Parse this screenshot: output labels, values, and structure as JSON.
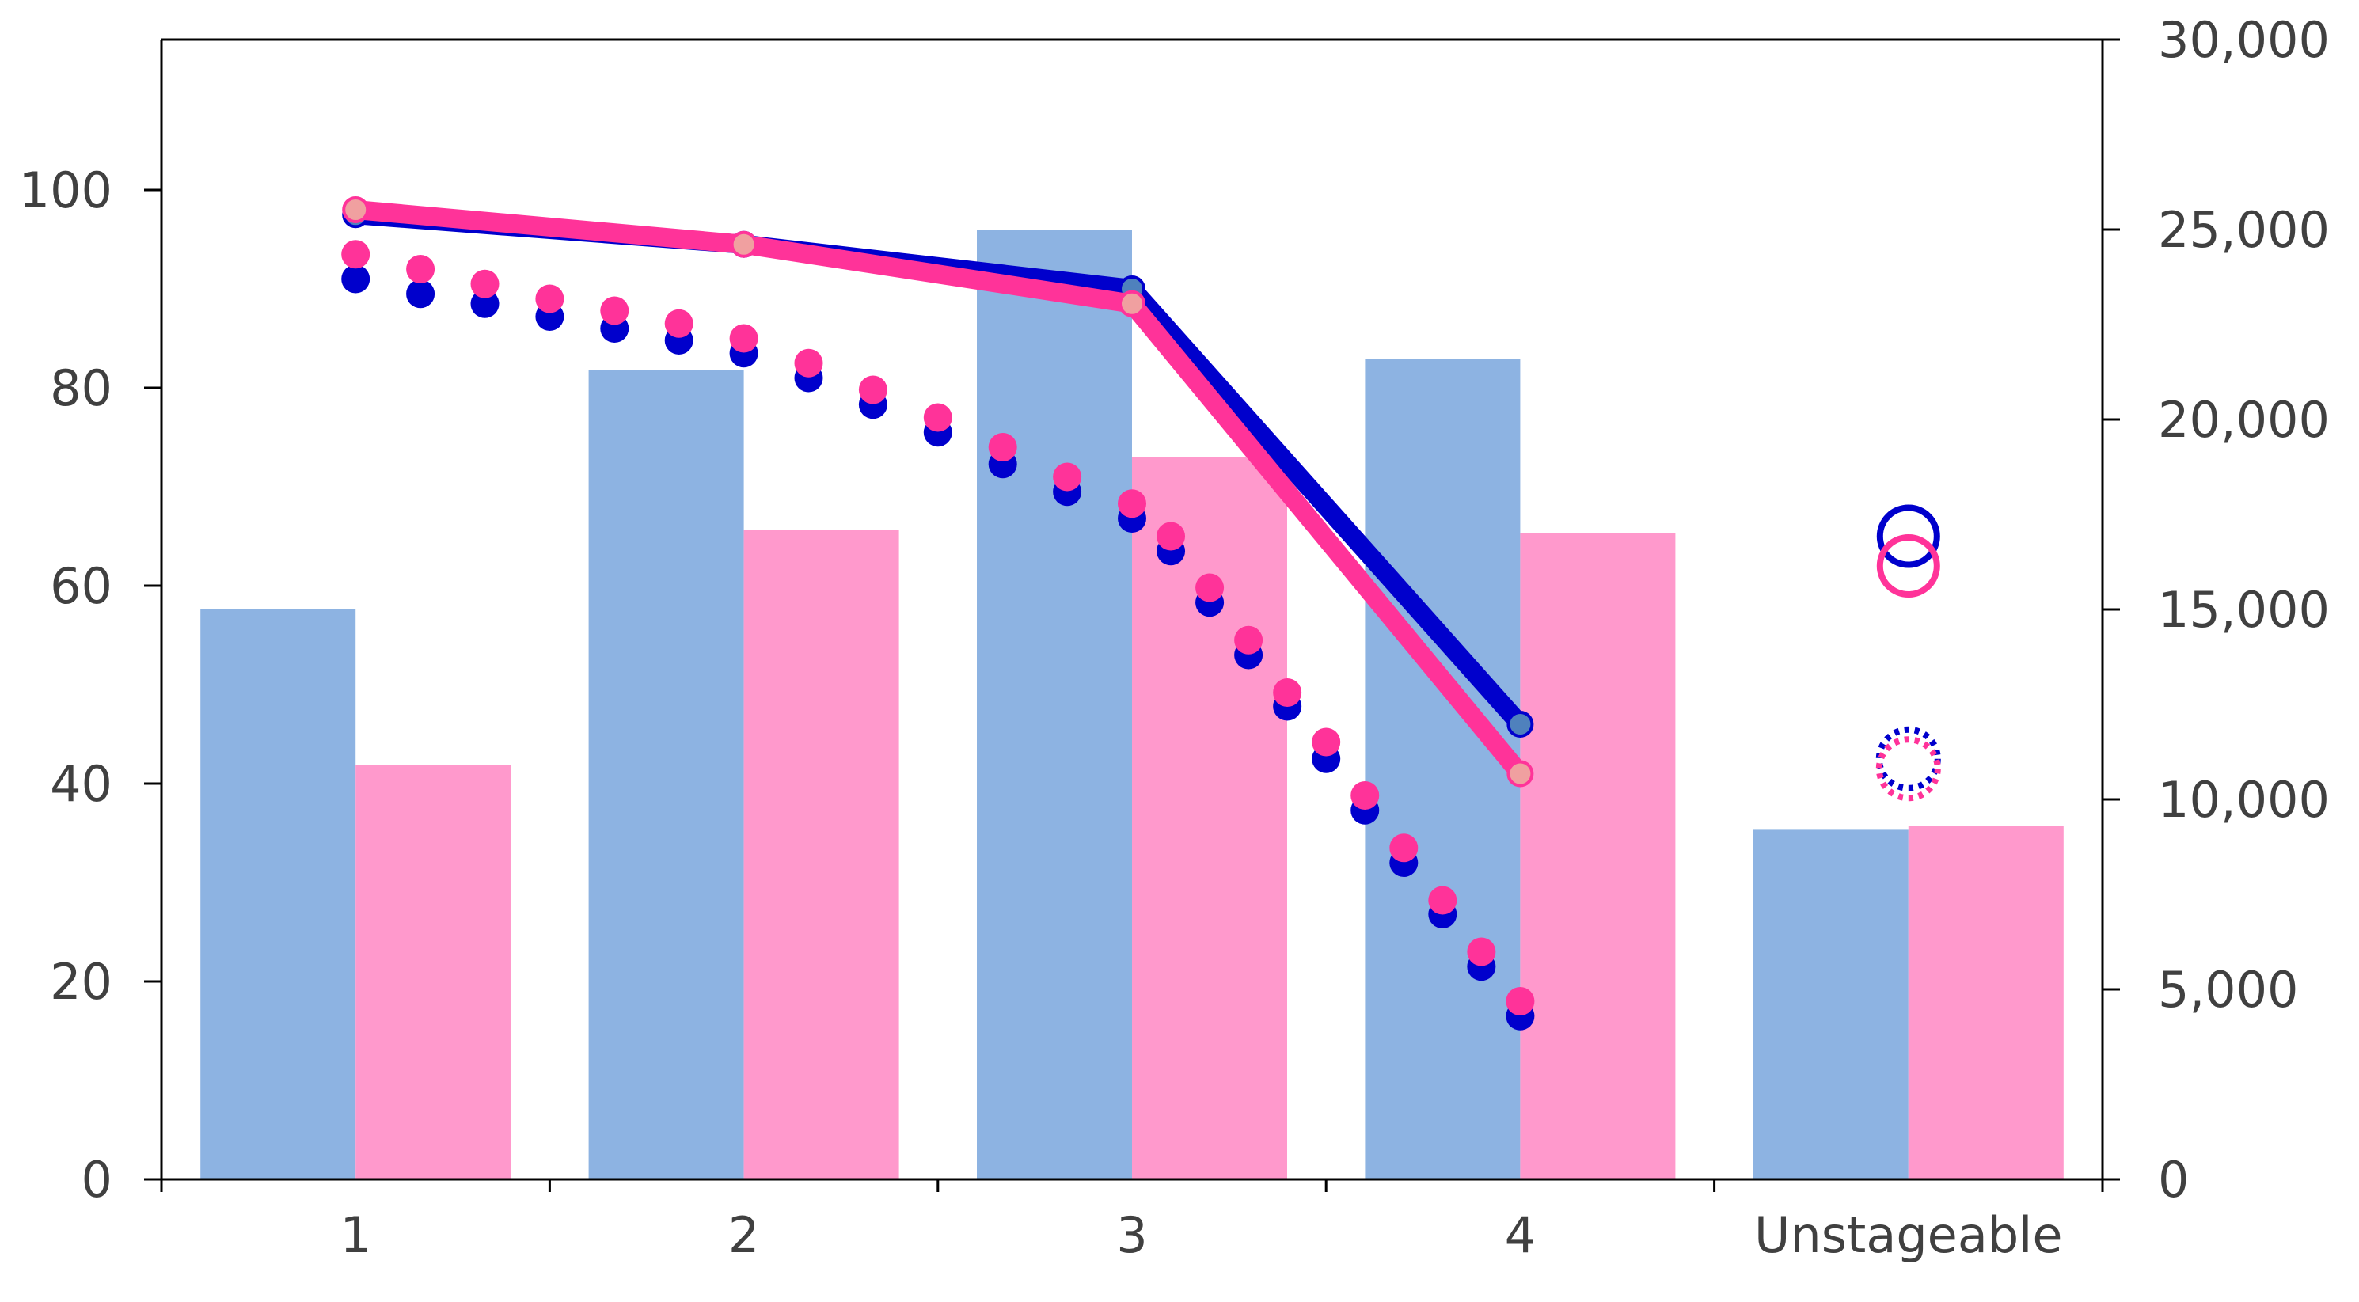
{
  "chart_data": {
    "type": "bar",
    "title": "",
    "xlabel": "",
    "ylabel": "",
    "categories": [
      "1",
      "2",
      "3",
      "4",
      "Unstageable"
    ],
    "y_left": {
      "lim": [
        0,
        110
      ],
      "ticks": [
        "0",
        "20",
        "40",
        "60",
        "80",
        "100"
      ],
      "tick_values": [
        0,
        20,
        40,
        60,
        80,
        100
      ]
    },
    "y_right": {
      "lim": [
        0,
        30000
      ],
      "ticks": [
        "0",
        "5,000",
        "10,000",
        "15,000",
        "20,000",
        "25,000",
        "30,000"
      ],
      "tick_values": [
        0,
        5000,
        10000,
        15000,
        20000,
        25000,
        30000
      ]
    },
    "grid": false,
    "legend": "none",
    "bar_series": [
      {
        "axis": "right",
        "color": "#8DB3E2",
        "values": [
          15000,
          21300,
          25000,
          21600,
          9200
        ]
      },
      {
        "axis": "right",
        "color": "#FF99CC",
        "values": [
          10900,
          17100,
          19000,
          17000,
          9300
        ]
      }
    ],
    "line_series": [
      {
        "axis": "left",
        "style": "solid",
        "color": "#0000CC",
        "marker_color": "#4F81BD",
        "values": [
          97.5,
          94.5,
          90,
          46,
          null
        ]
      },
      {
        "axis": "left",
        "style": "solid",
        "color": "#FF3399",
        "marker_color": "#F0A0A0",
        "values": [
          98,
          94.5,
          88.5,
          41,
          null
        ]
      }
    ],
    "dotted_curves": [
      {
        "axis": "left",
        "color": "#0000CC",
        "x": [
          1,
          1.167,
          1.333,
          1.5,
          1.667,
          1.833,
          2,
          2.167,
          2.333,
          2.5,
          2.667,
          2.833,
          3,
          3.1,
          3.2,
          3.3,
          3.4,
          3.5,
          3.6,
          3.7,
          3.8,
          3.9,
          4
        ],
        "values": [
          91,
          89.5,
          88.5,
          87.2,
          86,
          84.8,
          83.5,
          81,
          78.3,
          75.5,
          72.3,
          69.5,
          66.8,
          63.5,
          58.3,
          53,
          47.8,
          42.5,
          37.3,
          32,
          26.8,
          21.5,
          16.5
        ]
      },
      {
        "axis": "left",
        "color": "#FF3399",
        "x": [
          1,
          1.167,
          1.333,
          1.5,
          1.667,
          1.833,
          2,
          2.167,
          2.333,
          2.5,
          2.667,
          2.833,
          3,
          3.1,
          3.2,
          3.3,
          3.4,
          3.5,
          3.6,
          3.7,
          3.8,
          3.9,
          4
        ],
        "values": [
          93.5,
          92,
          90.5,
          89,
          87.8,
          86.5,
          85,
          82.5,
          79.8,
          77,
          74,
          71,
          68.3,
          65,
          59.8,
          54.5,
          49.2,
          44.2,
          38.8,
          33.5,
          28.2,
          23,
          18
        ]
      }
    ],
    "unstageable_markers": [
      {
        "style": "open-circle",
        "color": "#0000CC",
        "value": 65
      },
      {
        "style": "open-circle",
        "color": "#FF3399",
        "value": 62
      },
      {
        "style": "dotted-circle",
        "color": "#0000CC",
        "value": 42.5
      },
      {
        "style": "dotted-circle",
        "color": "#FF3399",
        "value": 41.5
      }
    ]
  }
}
